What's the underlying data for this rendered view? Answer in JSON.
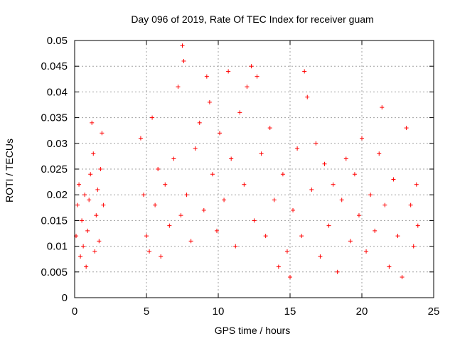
{
  "chart_data": {
    "type": "scatter",
    "title": "Day 096 of 2019, Rate Of TEC Index for receiver guam",
    "xlabel": "GPS time / hours",
    "ylabel": "ROTI / TECUs",
    "xlim": [
      0,
      25
    ],
    "ylim": [
      0,
      0.05
    ],
    "x_ticks": [
      0,
      5,
      10,
      15,
      20,
      25
    ],
    "x_tick_labels": [
      "0",
      "5",
      "10",
      "15",
      "20",
      "25"
    ],
    "y_ticks": [
      0,
      0.005,
      0.01,
      0.015,
      0.02,
      0.025,
      0.03,
      0.035,
      0.04,
      0.045,
      0.05
    ],
    "y_tick_labels": [
      "0",
      "0.005",
      "0.01",
      "0.015",
      "0.02",
      "0.025",
      "0.03",
      "0.035",
      "0.04",
      "0.045",
      "0.05"
    ],
    "grid": true,
    "marker": "+",
    "series": [
      {
        "name": "ROTI",
        "color": "#ff0000",
        "points": [
          [
            0.1,
            0.012
          ],
          [
            0.2,
            0.018
          ],
          [
            0.3,
            0.022
          ],
          [
            0.4,
            0.008
          ],
          [
            0.5,
            0.015
          ],
          [
            0.6,
            0.01
          ],
          [
            0.7,
            0.02
          ],
          [
            0.8,
            0.006
          ],
          [
            0.9,
            0.013
          ],
          [
            1.0,
            0.019
          ],
          [
            1.1,
            0.024
          ],
          [
            1.2,
            0.034
          ],
          [
            1.3,
            0.028
          ],
          [
            1.4,
            0.009
          ],
          [
            1.5,
            0.016
          ],
          [
            1.6,
            0.021
          ],
          [
            1.7,
            0.011
          ],
          [
            1.8,
            0.025
          ],
          [
            1.9,
            0.032
          ],
          [
            2.0,
            0.018
          ],
          [
            4.6,
            0.031
          ],
          [
            4.8,
            0.02
          ],
          [
            5.0,
            0.012
          ],
          [
            5.2,
            0.009
          ],
          [
            5.4,
            0.035
          ],
          [
            5.6,
            0.018
          ],
          [
            5.8,
            0.025
          ],
          [
            6.0,
            0.008
          ],
          [
            6.3,
            0.022
          ],
          [
            6.6,
            0.014
          ],
          [
            6.9,
            0.027
          ],
          [
            7.2,
            0.041
          ],
          [
            7.4,
            0.016
          ],
          [
            7.5,
            0.049
          ],
          [
            7.6,
            0.046
          ],
          [
            7.8,
            0.02
          ],
          [
            8.1,
            0.011
          ],
          [
            8.4,
            0.029
          ],
          [
            8.7,
            0.034
          ],
          [
            9.0,
            0.017
          ],
          [
            9.2,
            0.043
          ],
          [
            9.4,
            0.038
          ],
          [
            9.6,
            0.024
          ],
          [
            9.9,
            0.013
          ],
          [
            10.1,
            0.032
          ],
          [
            10.4,
            0.019
          ],
          [
            10.7,
            0.044
          ],
          [
            10.9,
            0.027
          ],
          [
            11.2,
            0.01
          ],
          [
            11.5,
            0.036
          ],
          [
            11.8,
            0.022
          ],
          [
            12.0,
            0.041
          ],
          [
            12.3,
            0.045
          ],
          [
            12.5,
            0.015
          ],
          [
            12.7,
            0.043
          ],
          [
            13.0,
            0.028
          ],
          [
            13.3,
            0.012
          ],
          [
            13.6,
            0.033
          ],
          [
            13.9,
            0.019
          ],
          [
            14.2,
            0.006
          ],
          [
            14.5,
            0.024
          ],
          [
            14.8,
            0.009
          ],
          [
            15.0,
            0.004
          ],
          [
            15.2,
            0.017
          ],
          [
            15.5,
            0.029
          ],
          [
            15.8,
            0.012
          ],
          [
            16.0,
            0.044
          ],
          [
            16.2,
            0.039
          ],
          [
            16.5,
            0.021
          ],
          [
            16.8,
            0.03
          ],
          [
            17.1,
            0.008
          ],
          [
            17.4,
            0.026
          ],
          [
            17.7,
            0.014
          ],
          [
            18.0,
            0.022
          ],
          [
            18.3,
            0.005
          ],
          [
            18.6,
            0.019
          ],
          [
            18.9,
            0.027
          ],
          [
            19.2,
            0.011
          ],
          [
            19.5,
            0.024
          ],
          [
            19.8,
            0.016
          ],
          [
            20.0,
            0.031
          ],
          [
            20.3,
            0.009
          ],
          [
            20.6,
            0.02
          ],
          [
            20.9,
            0.013
          ],
          [
            21.2,
            0.028
          ],
          [
            21.4,
            0.037
          ],
          [
            21.6,
            0.018
          ],
          [
            21.9,
            0.006
          ],
          [
            22.2,
            0.023
          ],
          [
            22.5,
            0.012
          ],
          [
            22.8,
            0.004
          ],
          [
            23.1,
            0.033
          ],
          [
            23.4,
            0.018
          ],
          [
            23.6,
            0.01
          ],
          [
            23.8,
            0.022
          ],
          [
            23.9,
            0.014
          ]
        ]
      }
    ]
  }
}
